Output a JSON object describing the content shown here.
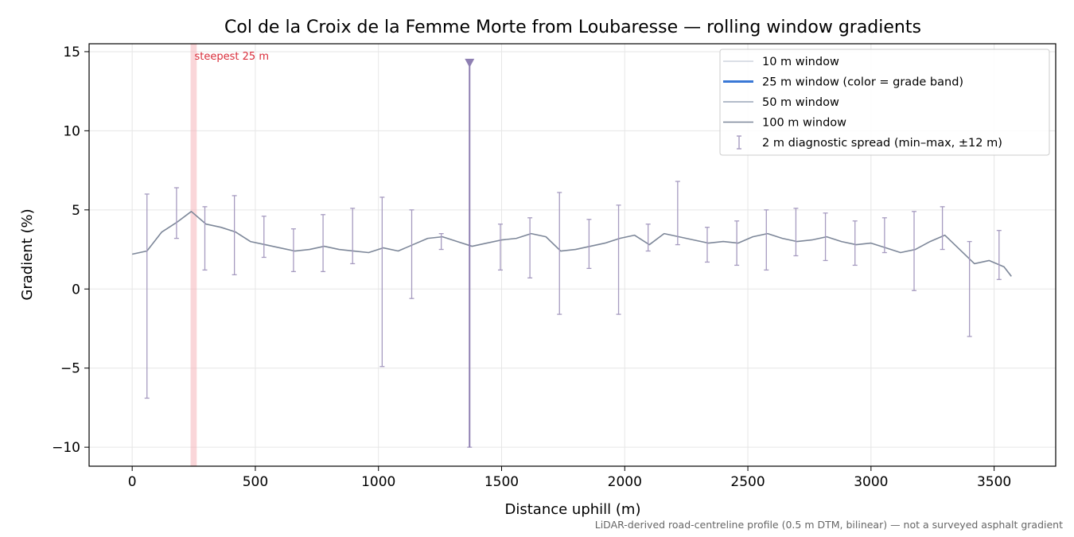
{
  "chart_data": {
    "type": "line",
    "title": "Col de la Croix de la Femme Morte from Loubaresse — rolling window gradients",
    "xlabel": "Distance uphill (m)",
    "ylabel": "Gradient (%)",
    "footnote": "LiDAR-derived road-centreline profile (0.5 m DTM, bilinear) — not a surveyed asphalt gradient",
    "xlim": [
      -175,
      3750
    ],
    "ylim": [
      -11.2,
      15.5
    ],
    "xticks": [
      "0",
      "500",
      "1000",
      "1500",
      "2000",
      "2500",
      "3000",
      "3500"
    ],
    "xtick_values": [
      0,
      500,
      1000,
      1500,
      2000,
      2500,
      3000,
      3500
    ],
    "yticks": [
      "−10",
      "−5",
      "0",
      "5",
      "10",
      "15"
    ],
    "ytick_values": [
      -10,
      -5,
      0,
      5,
      10,
      15
    ],
    "grid": true,
    "legend_position": "top-right",
    "legend": [
      {
        "label": "10 m window",
        "color": "#c5ccd7",
        "style": "line-thin"
      },
      {
        "label": "25 m window (color = grade band)",
        "color": "#3a78d6",
        "style": "line-thick"
      },
      {
        "label": "50 m window",
        "color": "#9aa6b8",
        "style": "line-medium"
      },
      {
        "label": "100 m window",
        "color": "#7d8799",
        "style": "line-medium"
      },
      {
        "label": "2 m diagnostic spread (min–max, ±12 m)",
        "color": "#a69bc0",
        "style": "errorbar"
      }
    ],
    "steepest_annotation": {
      "label": "steepest 25 m",
      "x_start": 237,
      "x_end": 262,
      "color": "#d92d3a"
    },
    "spike_marker": {
      "x": 1370,
      "y_top": 14.3,
      "y_bottom": -10.0,
      "color": "#8e7fb2"
    },
    "series": [
      {
        "name": "100 m window",
        "x": [
          0,
          60,
          120,
          180,
          240,
          300,
          360,
          420,
          480,
          540,
          600,
          660,
          720,
          780,
          840,
          900,
          960,
          1020,
          1080,
          1140,
          1200,
          1260,
          1320,
          1380,
          1440,
          1500,
          1560,
          1620,
          1680,
          1740,
          1800,
          1860,
          1920,
          1980,
          2040,
          2100,
          2160,
          2220,
          2280,
          2340,
          2400,
          2460,
          2520,
          2580,
          2640,
          2700,
          2760,
          2820,
          2880,
          2940,
          3000,
          3060,
          3120,
          3180,
          3240,
          3300,
          3360,
          3420,
          3480,
          3540,
          3570
        ],
        "values": [
          2.2,
          2.4,
          3.6,
          4.2,
          4.9,
          4.1,
          3.9,
          3.6,
          3.0,
          2.8,
          2.6,
          2.4,
          2.5,
          2.7,
          2.5,
          2.4,
          2.3,
          2.6,
          2.4,
          2.8,
          3.2,
          3.3,
          3.0,
          2.7,
          2.9,
          3.1,
          3.2,
          3.5,
          3.3,
          2.4,
          2.5,
          2.7,
          2.9,
          3.2,
          3.4,
          2.8,
          3.5,
          3.3,
          3.1,
          2.9,
          3.0,
          2.9,
          3.3,
          3.5,
          3.2,
          3.0,
          3.1,
          3.3,
          3.0,
          2.8,
          2.9,
          2.6,
          2.3,
          2.5,
          3.0,
          3.4,
          2.5,
          1.6,
          1.8,
          1.4,
          0.8
        ]
      }
    ],
    "error_bars": [
      {
        "x": 60,
        "min": -6.9,
        "max": 6.0
      },
      {
        "x": 180,
        "min": 3.2,
        "max": 6.4
      },
      {
        "x": 295,
        "min": 1.2,
        "max": 5.2
      },
      {
        "x": 415,
        "min": 0.9,
        "max": 5.9
      },
      {
        "x": 535,
        "min": 2.0,
        "max": 4.6
      },
      {
        "x": 655,
        "min": 1.1,
        "max": 3.8
      },
      {
        "x": 775,
        "min": 1.1,
        "max": 4.7
      },
      {
        "x": 895,
        "min": 1.6,
        "max": 5.1
      },
      {
        "x": 1015,
        "min": -4.9,
        "max": 5.8
      },
      {
        "x": 1135,
        "min": -0.6,
        "max": 5.0
      },
      {
        "x": 1255,
        "min": 2.5,
        "max": 3.5
      },
      {
        "x": 1370,
        "min": -10.0,
        "max": 14.3
      },
      {
        "x": 1495,
        "min": 1.2,
        "max": 4.1
      },
      {
        "x": 1615,
        "min": 0.7,
        "max": 4.5
      },
      {
        "x": 1735,
        "min": -1.6,
        "max": 6.1
      },
      {
        "x": 1855,
        "min": 1.3,
        "max": 4.4
      },
      {
        "x": 1975,
        "min": -1.6,
        "max": 5.3
      },
      {
        "x": 2095,
        "min": 2.4,
        "max": 4.1
      },
      {
        "x": 2215,
        "min": 2.8,
        "max": 6.8
      },
      {
        "x": 2335,
        "min": 1.7,
        "max": 3.9
      },
      {
        "x": 2455,
        "min": 1.5,
        "max": 4.3
      },
      {
        "x": 2575,
        "min": 1.2,
        "max": 5.0
      },
      {
        "x": 2695,
        "min": 2.1,
        "max": 5.1
      },
      {
        "x": 2815,
        "min": 1.8,
        "max": 4.8
      },
      {
        "x": 2935,
        "min": 1.5,
        "max": 4.3
      },
      {
        "x": 3055,
        "min": 2.3,
        "max": 4.5
      },
      {
        "x": 3175,
        "min": -0.1,
        "max": 4.9
      },
      {
        "x": 3290,
        "min": 2.5,
        "max": 5.2
      },
      {
        "x": 3400,
        "min": -3.0,
        "max": 3.0
      },
      {
        "x": 3520,
        "min": 0.6,
        "max": 3.7
      }
    ]
  }
}
